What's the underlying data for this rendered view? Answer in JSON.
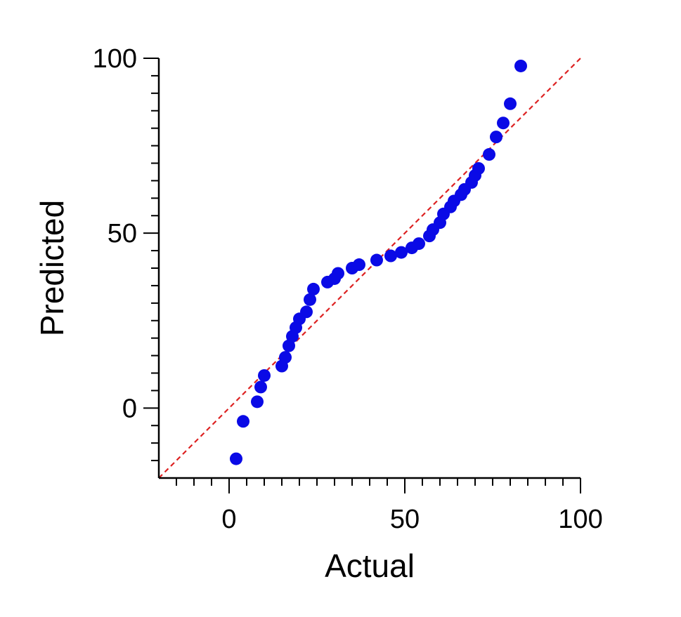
{
  "chart_data": {
    "type": "scatter",
    "xlabel": "Actual",
    "ylabel": "Predicted",
    "xlim": [
      -20,
      100
    ],
    "ylim": [
      -20,
      100
    ],
    "x_ticks": [
      {
        "value": 0,
        "label": "0"
      },
      {
        "value": 50,
        "label": "50"
      },
      {
        "value": 100,
        "label": "100"
      }
    ],
    "y_ticks": [
      {
        "value": 0,
        "label": "0"
      },
      {
        "value": 50,
        "label": "50"
      },
      {
        "value": 100,
        "label": "100"
      }
    ],
    "minor_tick_step": 5,
    "grid": false,
    "reference_line": {
      "style": "dashed",
      "color": "#dd2222",
      "from": [
        -20,
        -20
      ],
      "to": [
        100,
        100
      ]
    },
    "marker_color": "#0a0ae6",
    "series": [
      {
        "points": [
          [
            2,
            -14.5
          ],
          [
            4,
            -3.8
          ],
          [
            8,
            1.8
          ],
          [
            9,
            6
          ],
          [
            10,
            9.3
          ],
          [
            15,
            12
          ],
          [
            16,
            14.5
          ],
          [
            17,
            17.8
          ],
          [
            18,
            20.5
          ],
          [
            19,
            23
          ],
          [
            20,
            25.5
          ],
          [
            22,
            27.5
          ],
          [
            23,
            31
          ],
          [
            24,
            34
          ],
          [
            28,
            36
          ],
          [
            30,
            37
          ],
          [
            31,
            38.5
          ],
          [
            35,
            40
          ],
          [
            37,
            41
          ],
          [
            42,
            42.3
          ],
          [
            46,
            43.5
          ],
          [
            49,
            44.5
          ],
          [
            52,
            45.8
          ],
          [
            54,
            47
          ],
          [
            57,
            49.2
          ],
          [
            58,
            51
          ],
          [
            60,
            53
          ],
          [
            61,
            55.5
          ],
          [
            63,
            57.5
          ],
          [
            64,
            59.2
          ],
          [
            66,
            61
          ],
          [
            67,
            62.5
          ],
          [
            69,
            64.5
          ],
          [
            70,
            66.5
          ],
          [
            71,
            68.5
          ],
          [
            74,
            72.5
          ],
          [
            76,
            77.5
          ],
          [
            78,
            81.5
          ],
          [
            80,
            87
          ],
          [
            83,
            97.8
          ]
        ]
      }
    ]
  }
}
